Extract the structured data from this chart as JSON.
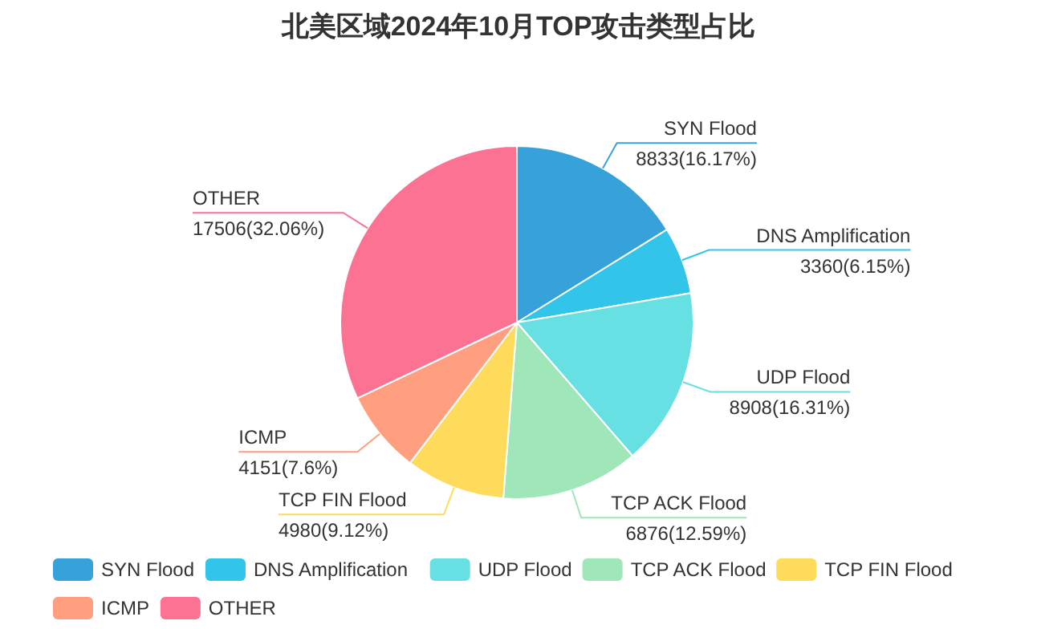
{
  "chart_data": {
    "type": "pie",
    "title": "北美区域2024年10月TOP攻击类型占比",
    "categories": [
      "SYN Flood",
      "DNS Amplification",
      "UDP Flood",
      "TCP ACK Flood",
      "TCP FIN Flood",
      "ICMP",
      "OTHER"
    ],
    "values": [
      8833,
      3360,
      8908,
      6876,
      4980,
      4151,
      17506
    ],
    "value_labels": [
      "8833(16.17%)",
      "3360(6.15%)",
      "8908(16.31%)",
      "6876(12.59%)",
      "4980(9.12%)",
      "4151(7.6%)",
      "17506(32.06%)"
    ],
    "colors": [
      "#37a2da",
      "#32c5e9",
      "#67e0e3",
      "#9fe6b8",
      "#ffdb5c",
      "#ff9f7f",
      "#fb7293"
    ],
    "legend": "bottom"
  }
}
